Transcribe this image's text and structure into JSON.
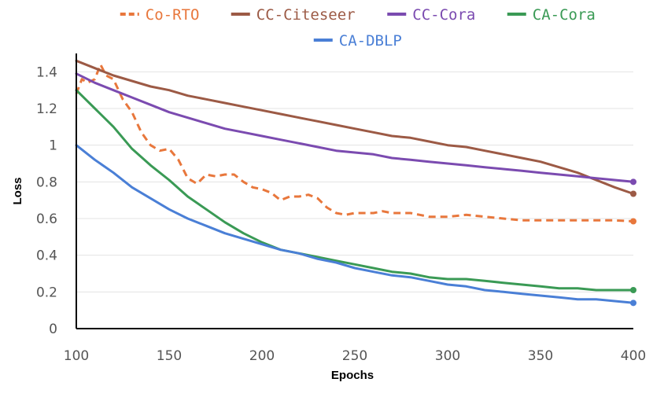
{
  "chart_data": {
    "type": "line",
    "xlabel": "Epochs",
    "ylabel": "Loss",
    "xlim": [
      100,
      400
    ],
    "ylim": [
      0,
      1.5
    ],
    "x_ticks": [
      "100",
      "150",
      "200",
      "250",
      "300",
      "350",
      "400"
    ],
    "y_ticks": [
      "0",
      "0.2",
      "0.4",
      "0.6",
      "0.8",
      "1",
      "1.2",
      "1.4"
    ],
    "grid": "horizontal",
    "legend_position": "top",
    "series": [
      {
        "name": "Co-RTO",
        "color": "#e8773c",
        "dash": "dashed",
        "x": [
          100,
          103,
          106,
          110,
          113,
          116,
          120,
          125,
          130,
          135,
          140,
          145,
          150,
          155,
          160,
          165,
          170,
          175,
          180,
          185,
          190,
          195,
          200,
          205,
          210,
          215,
          220,
          225,
          230,
          235,
          240,
          245,
          250,
          255,
          260,
          265,
          270,
          275,
          280,
          285,
          290,
          300,
          310,
          320,
          330,
          340,
          350,
          360,
          370,
          380,
          390,
          400
        ],
        "values": [
          1.28,
          1.36,
          1.34,
          1.36,
          1.44,
          1.38,
          1.36,
          1.25,
          1.18,
          1.07,
          1.0,
          0.97,
          0.98,
          0.92,
          0.82,
          0.79,
          0.84,
          0.83,
          0.84,
          0.84,
          0.8,
          0.77,
          0.76,
          0.74,
          0.7,
          0.72,
          0.72,
          0.73,
          0.71,
          0.66,
          0.63,
          0.62,
          0.63,
          0.63,
          0.63,
          0.64,
          0.63,
          0.63,
          0.63,
          0.62,
          0.61,
          0.61,
          0.62,
          0.61,
          0.6,
          0.59,
          0.59,
          0.59,
          0.59,
          0.59,
          0.59,
          0.585
        ]
      },
      {
        "name": "CC-Citeseer",
        "color": "#9c5a45",
        "dash": "solid",
        "x": [
          100,
          110,
          120,
          130,
          140,
          150,
          160,
          170,
          180,
          190,
          200,
          210,
          220,
          230,
          240,
          250,
          260,
          270,
          280,
          290,
          300,
          310,
          320,
          330,
          340,
          350,
          360,
          370,
          380,
          390,
          400
        ],
        "values": [
          1.46,
          1.42,
          1.38,
          1.35,
          1.32,
          1.3,
          1.27,
          1.25,
          1.23,
          1.21,
          1.19,
          1.17,
          1.15,
          1.13,
          1.11,
          1.09,
          1.07,
          1.05,
          1.04,
          1.02,
          1.0,
          0.99,
          0.97,
          0.95,
          0.93,
          0.91,
          0.88,
          0.85,
          0.81,
          0.77,
          0.735
        ]
      },
      {
        "name": "CC-Cora",
        "color": "#7b4bb0",
        "dash": "solid",
        "x": [
          100,
          110,
          120,
          130,
          140,
          150,
          160,
          170,
          180,
          190,
          200,
          210,
          220,
          230,
          240,
          250,
          260,
          270,
          280,
          290,
          300,
          310,
          320,
          330,
          340,
          350,
          360,
          370,
          380,
          390,
          400
        ],
        "values": [
          1.39,
          1.34,
          1.3,
          1.26,
          1.22,
          1.18,
          1.15,
          1.12,
          1.09,
          1.07,
          1.05,
          1.03,
          1.01,
          0.99,
          0.97,
          0.96,
          0.95,
          0.93,
          0.92,
          0.91,
          0.9,
          0.89,
          0.88,
          0.87,
          0.86,
          0.85,
          0.84,
          0.83,
          0.82,
          0.81,
          0.8
        ]
      },
      {
        "name": "CA-Cora",
        "color": "#3a9a55",
        "dash": "solid",
        "x": [
          100,
          110,
          120,
          130,
          140,
          150,
          160,
          170,
          180,
          190,
          200,
          210,
          220,
          230,
          240,
          250,
          260,
          270,
          280,
          290,
          300,
          310,
          320,
          330,
          340,
          350,
          360,
          370,
          380,
          390,
          400
        ],
        "values": [
          1.3,
          1.2,
          1.1,
          0.98,
          0.89,
          0.81,
          0.72,
          0.65,
          0.58,
          0.52,
          0.47,
          0.43,
          0.41,
          0.39,
          0.37,
          0.35,
          0.33,
          0.31,
          0.3,
          0.28,
          0.27,
          0.27,
          0.26,
          0.25,
          0.24,
          0.23,
          0.22,
          0.22,
          0.21,
          0.21,
          0.21
        ]
      },
      {
        "name": "CA-DBLP",
        "color": "#4a7fd6",
        "dash": "solid",
        "x": [
          100,
          110,
          120,
          130,
          140,
          150,
          160,
          170,
          180,
          190,
          200,
          210,
          220,
          230,
          240,
          250,
          260,
          270,
          280,
          290,
          300,
          310,
          320,
          330,
          340,
          350,
          360,
          370,
          380,
          390,
          400
        ],
        "values": [
          1.0,
          0.92,
          0.85,
          0.77,
          0.71,
          0.65,
          0.6,
          0.56,
          0.52,
          0.49,
          0.46,
          0.43,
          0.41,
          0.38,
          0.36,
          0.33,
          0.31,
          0.29,
          0.28,
          0.26,
          0.24,
          0.23,
          0.21,
          0.2,
          0.19,
          0.18,
          0.17,
          0.16,
          0.16,
          0.15,
          0.14
        ]
      }
    ]
  }
}
